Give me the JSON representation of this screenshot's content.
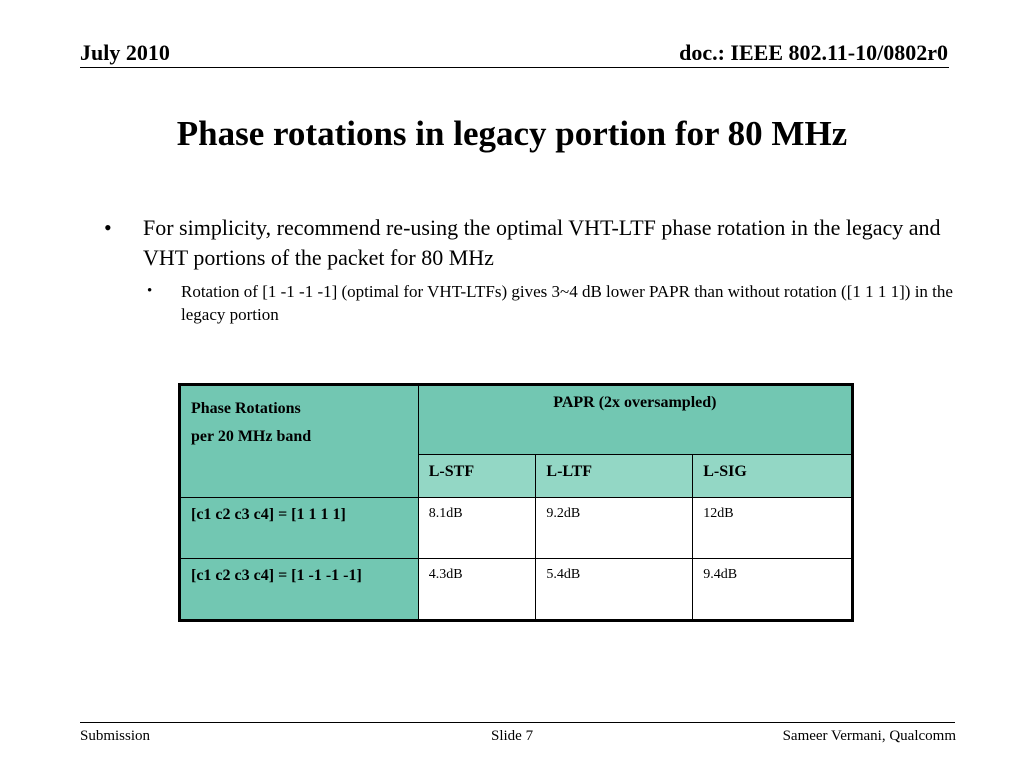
{
  "header": {
    "date": "July 2010",
    "doc_id": "doc.: IEEE 802.11-10/0802r0"
  },
  "title": "Phase rotations in legacy portion for 80 MHz",
  "bullets": {
    "level1_marker": "•",
    "level1_text": "For simplicity, recommend re-using the optimal VHT-LTF phase rotation in the legacy and VHT portions of the packet for 80 MHz",
    "level2_marker": "•",
    "level2_text": "Rotation of  [1 -1 -1 -1] (optimal for VHT-LTFs) gives 3~4 dB lower PAPR than without rotation ([1 1 1 1]) in the legacy portion"
  },
  "table": {
    "col0_header_line1": "Phase Rotations",
    "col0_header_line2": "per 20 MHz band",
    "group_header": "PAPR (2x oversampled)",
    "subheaders": [
      "L-STF",
      "L-LTF",
      "L-SIG"
    ],
    "rows": [
      {
        "label": "[c1 c2 c3 c4] = [1 1 1 1]",
        "values": [
          "8.1dB",
          "9.2dB",
          "12dB"
        ]
      },
      {
        "label": "[c1 c2 c3 c4] = [1 -1 -1 -1]",
        "values": [
          "4.3dB",
          "5.4dB",
          "9.4dB"
        ]
      }
    ]
  },
  "footer": {
    "left": "Submission",
    "center": "Slide 7",
    "right": "Sameer Vermani, Qualcomm"
  }
}
